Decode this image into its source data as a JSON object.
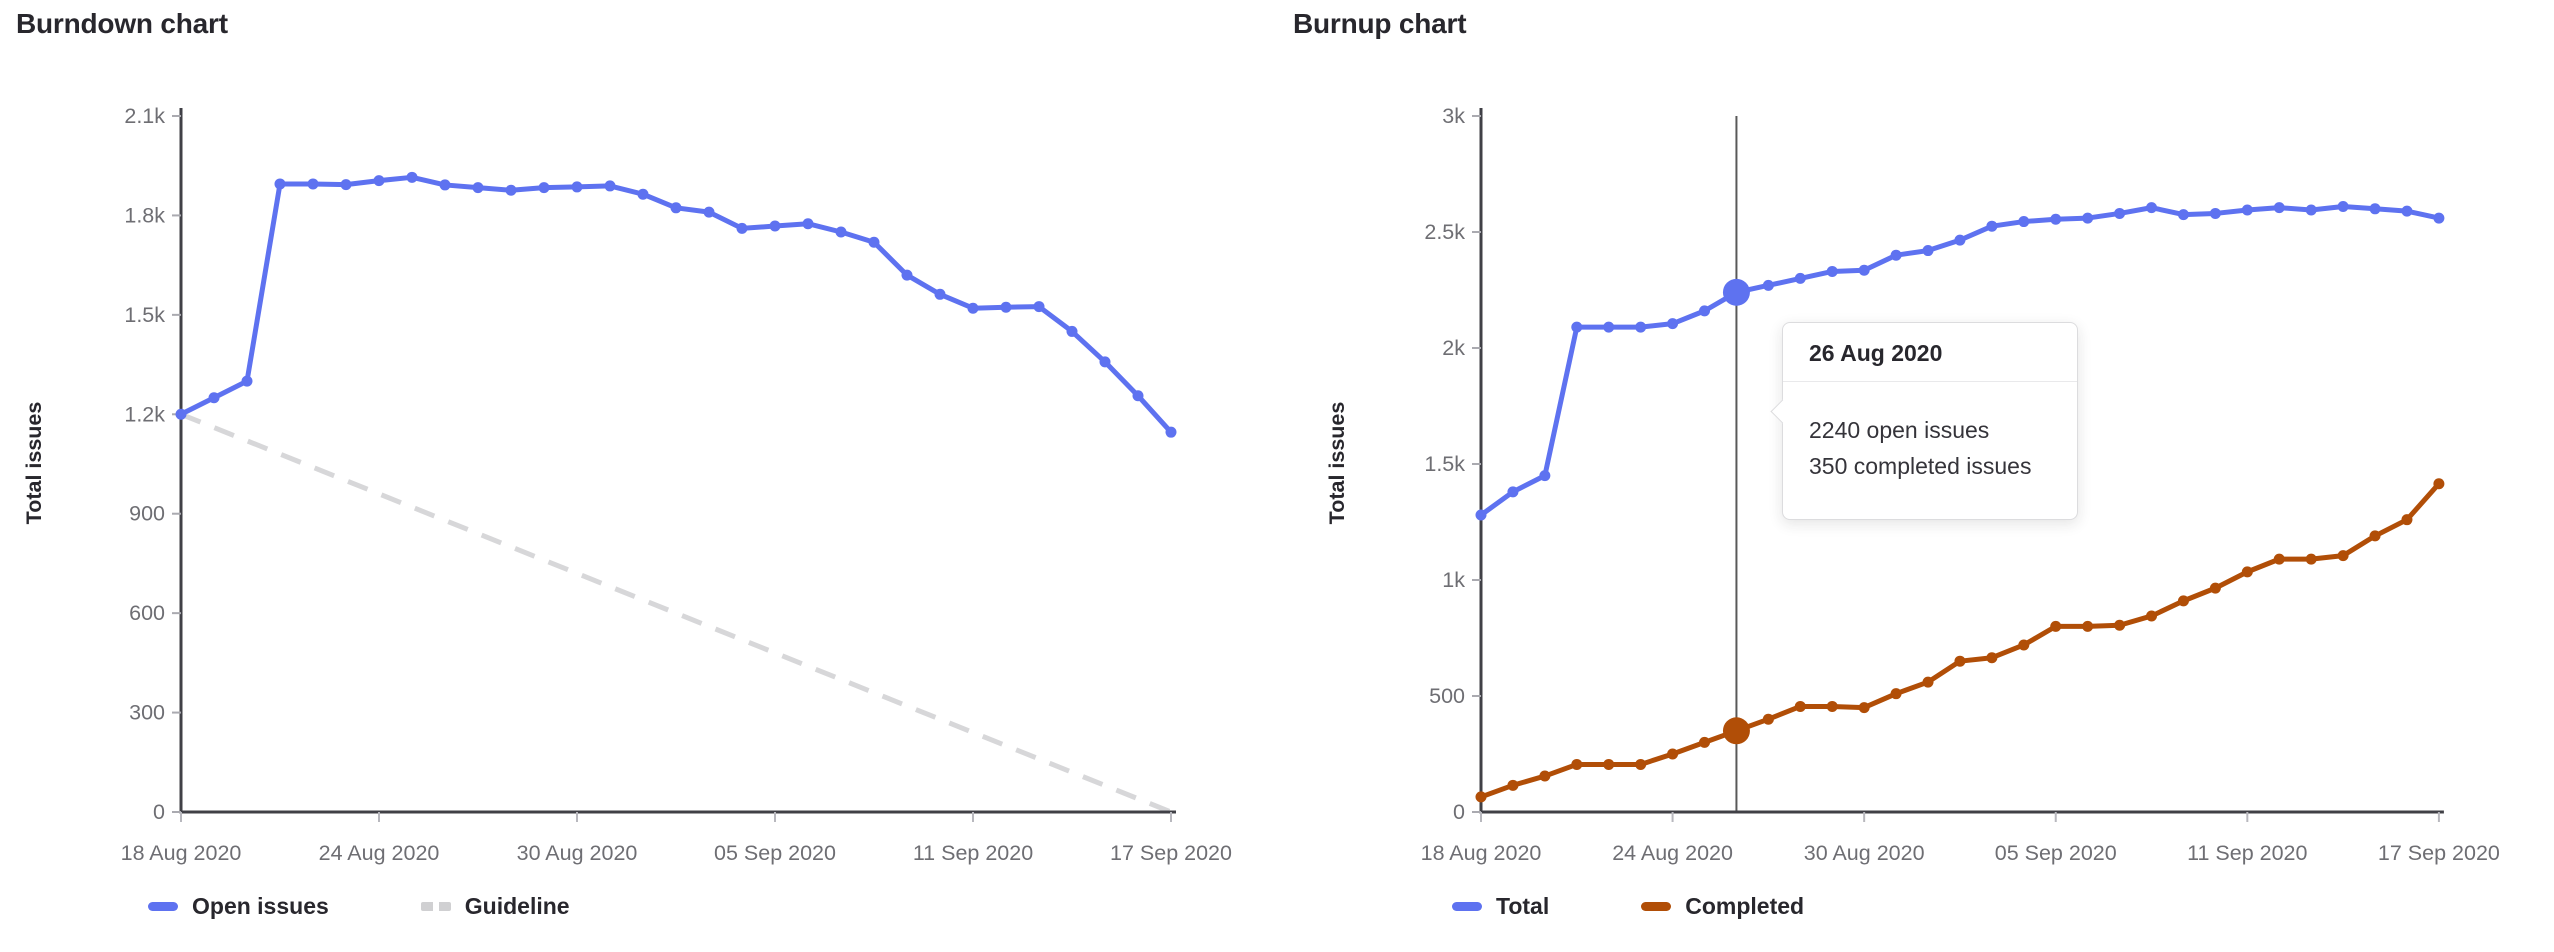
{
  "colors": {
    "series_blue": "#5e72f0",
    "series_rust": "#b14e07",
    "guideline_gray": "#d7d7d9",
    "crosshair_gray": "#595959",
    "axis": "#404046",
    "tick_label": "#6e6e73",
    "text_dark": "#28272d"
  },
  "chart_data": [
    {
      "type": "line",
      "title": "Burndown chart",
      "ylabel": "Total issues",
      "xlabel": "",
      "grid": false,
      "legend_position": "bottom-left",
      "x_axis": {
        "start": "18 Aug 2020",
        "end": "17 Sep 2020",
        "points": 31,
        "tick_day_indices": [
          0,
          6,
          12,
          18,
          24,
          30
        ],
        "tick_labels": [
          "18 Aug 2020",
          "24 Aug 2020",
          "30 Aug 2020",
          "05 Sep 2020",
          "11 Sep 2020",
          "17 Sep 2020"
        ]
      },
      "y_axis": {
        "min": 0,
        "max": 2100,
        "tick_values": [
          0,
          300,
          600,
          900,
          1200,
          1500,
          1800,
          2100
        ],
        "tick_labels": [
          "0",
          "300",
          "600",
          "900",
          "1.2k",
          "1.5k",
          "1.8k",
          "2.1k"
        ]
      },
      "series": [
        {
          "name": "Open issues",
          "color": "#5e72f0",
          "style": "solid",
          "values": [
            1200,
            1250,
            1300,
            1895,
            1895,
            1893,
            1905,
            1915,
            1892,
            1884,
            1876,
            1884,
            1886,
            1889,
            1864,
            1823,
            1810,
            1761,
            1768,
            1775,
            1750,
            1719,
            1620,
            1562,
            1520,
            1523,
            1525,
            1450,
            1358,
            1256,
            1146
          ]
        }
      ],
      "guideline": {
        "name": "Guideline",
        "color": "#d7d7d9",
        "style": "dashed",
        "endpoints": [
          [
            0,
            1200
          ],
          [
            30,
            0
          ]
        ]
      },
      "legend": [
        {
          "label": "Open issues",
          "color": "#5e72f0",
          "dashed": false
        },
        {
          "label": "Guideline",
          "color": "#d0d0d2",
          "dashed": true
        }
      ]
    },
    {
      "type": "line",
      "title": "Burnup chart",
      "ylabel": "Total issues",
      "xlabel": "",
      "grid": false,
      "legend_position": "bottom-left",
      "x_axis": {
        "start": "18 Aug 2020",
        "end": "17 Sep 2020",
        "points": 31,
        "tick_day_indices": [
          0,
          6,
          12,
          18,
          24,
          30
        ],
        "tick_labels": [
          "18 Aug 2020",
          "24 Aug 2020",
          "30 Aug 2020",
          "05 Sep 2020",
          "11 Sep 2020",
          "17 Sep 2020"
        ]
      },
      "y_axis": {
        "min": 0,
        "max": 3000,
        "tick_values": [
          0,
          500,
          1000,
          1500,
          2000,
          2500,
          3000
        ],
        "tick_labels": [
          "0",
          "500",
          "1k",
          "1.5k",
          "2k",
          "2.5k",
          "3k"
        ]
      },
      "series": [
        {
          "name": "Total",
          "color": "#5e72f0",
          "style": "solid",
          "values": [
            1280,
            1380,
            1450,
            2090,
            2090,
            2090,
            2105,
            2160,
            2240,
            2270,
            2300,
            2330,
            2335,
            2400,
            2420,
            2465,
            2525,
            2545,
            2555,
            2560,
            2580,
            2605,
            2575,
            2580,
            2595,
            2605,
            2595,
            2610,
            2600,
            2590,
            2560
          ]
        },
        {
          "name": "Completed",
          "color": "#b14e07",
          "style": "solid",
          "values": [
            65,
            115,
            155,
            205,
            205,
            205,
            250,
            300,
            350,
            400,
            455,
            455,
            450,
            510,
            560,
            650,
            665,
            720,
            800,
            800,
            805,
            845,
            910,
            965,
            1035,
            1090,
            1090,
            1105,
            1190,
            1260,
            1415
          ]
        }
      ],
      "crosshair": {
        "date": "26 Aug 2020",
        "day_index": 8,
        "highlight_values": {
          "Total": 2240,
          "Completed": 350
        }
      },
      "tooltip": {
        "title": "26 Aug 2020",
        "lines": [
          "2240 open issues",
          "350 completed issues"
        ]
      },
      "legend": [
        {
          "label": "Total",
          "color": "#5e72f0",
          "dashed": false
        },
        {
          "label": "Completed",
          "color": "#b14e07",
          "dashed": false
        }
      ]
    }
  ]
}
